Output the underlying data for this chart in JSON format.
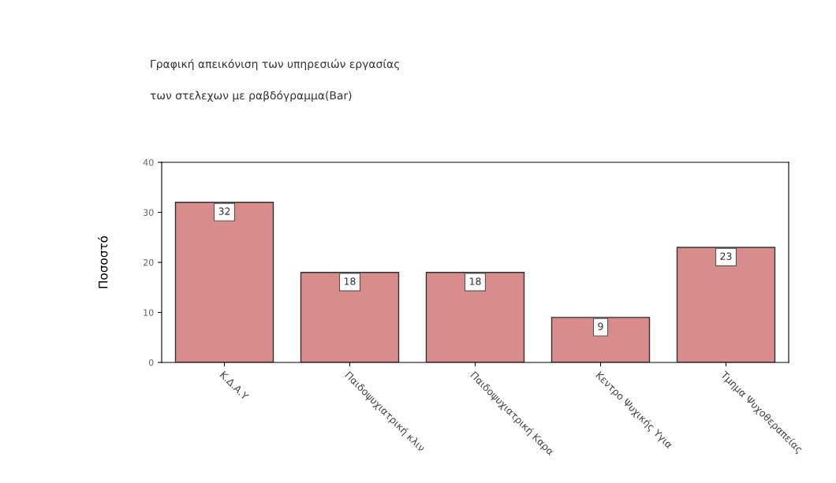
{
  "chart_data": {
    "type": "bar",
    "title": "Γραφική απεικόνιση των υπηρεσιών εργασίας",
    "subtitle": "των στελεχων με ραβδόγραμμα(Bar)",
    "ylabel": "Ποσοστό",
    "categories": [
      "Κ.Δ.Α.Υ",
      "Παιδοψυχιατρική κλιν",
      "Παιδοψυχιατρική Καρα",
      "Κεντρο Ψυχικής Υγια",
      "Τμημα Ψυχοθεραπείας"
    ],
    "values": [
      32,
      18,
      18,
      9,
      23
    ],
    "color": "#d98c8c",
    "data_labels": true,
    "ylim": [
      0,
      40
    ],
    "yticks": [
      0,
      10,
      20,
      30,
      40
    ],
    "grid": false,
    "legend": false
  }
}
